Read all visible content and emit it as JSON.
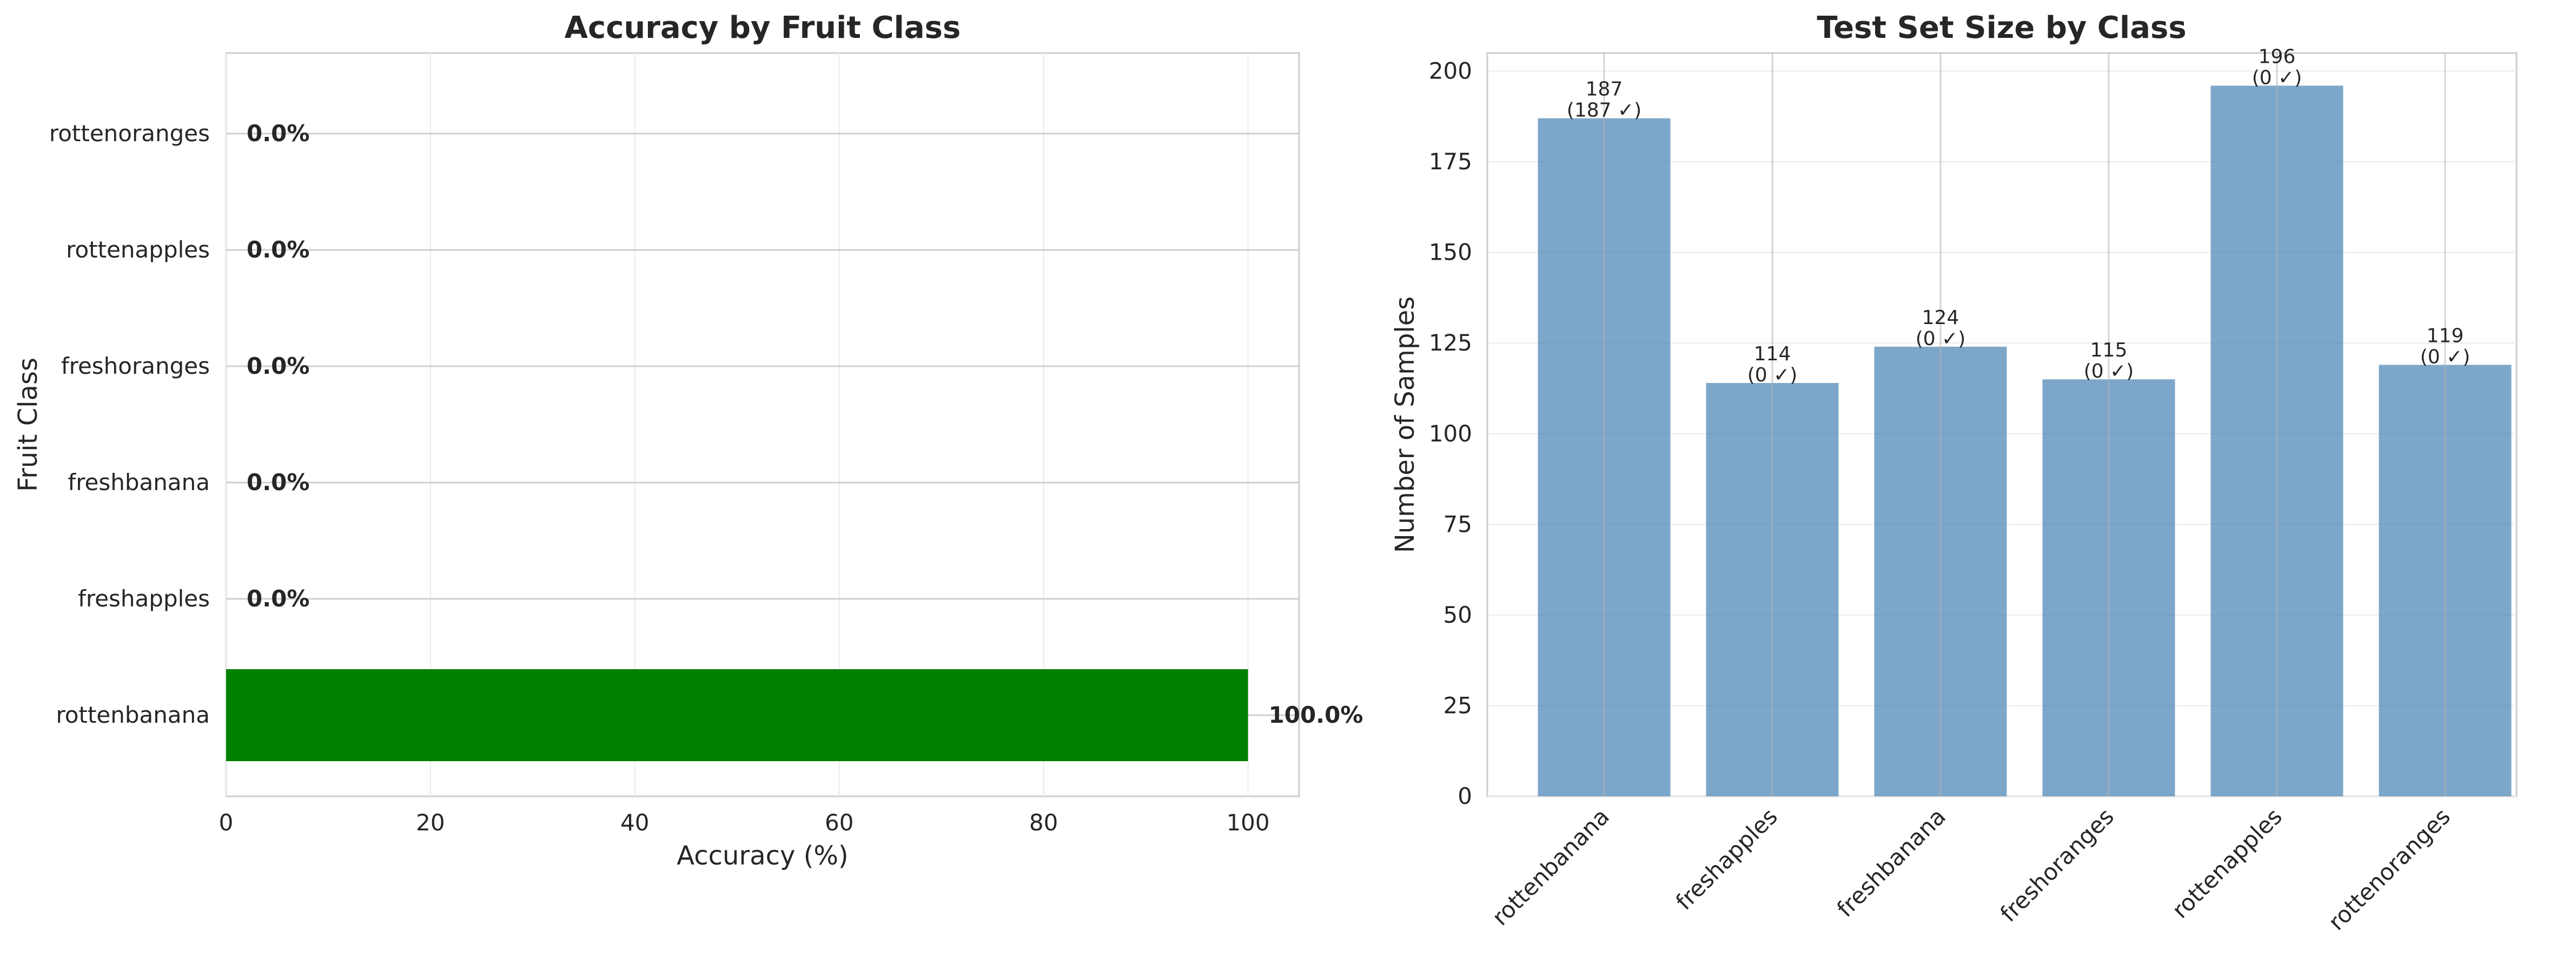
{
  "chart_data": [
    {
      "type": "bar",
      "orientation": "horizontal",
      "title": "Accuracy by Fruit Class",
      "xlabel": "Accuracy (%)",
      "ylabel": "Fruit Class",
      "xlim": [
        0,
        105
      ],
      "xticks": [
        0,
        20,
        40,
        60,
        80,
        100
      ],
      "grid": true,
      "categories": [
        "rottenbanana",
        "freshapples",
        "freshbanana",
        "freshoranges",
        "rottenapples",
        "rottenoranges"
      ],
      "values": [
        100.0,
        0.0,
        0.0,
        0.0,
        0.0,
        0.0
      ],
      "value_labels": [
        "100.0%",
        "0.0%",
        "0.0%",
        "0.0%",
        "0.0%",
        "0.0%"
      ],
      "bar_color": "#008000"
    },
    {
      "type": "bar",
      "title": "Test Set Size by Class",
      "xlabel": "",
      "ylabel": "Number of Samples",
      "ylim": [
        0,
        205
      ],
      "yticks": [
        0,
        25,
        50,
        75,
        100,
        125,
        150,
        175,
        200
      ],
      "grid": true,
      "categories": [
        "rottenbanana",
        "freshapples",
        "freshbanana",
        "freshoranges",
        "rottenapples",
        "rottenoranges"
      ],
      "values": [
        187,
        114,
        124,
        115,
        196,
        119
      ],
      "correct": [
        187,
        0,
        0,
        0,
        0,
        0
      ],
      "value_labels": [
        "187",
        "114",
        "124",
        "115",
        "196",
        "119"
      ],
      "correct_labels": [
        "(187 ✓)",
        "(0 ✓)",
        "(0 ✓)",
        "(0 ✓)",
        "(0 ✓)",
        "(0 ✓)"
      ],
      "bar_color": "#4682b4"
    }
  ]
}
